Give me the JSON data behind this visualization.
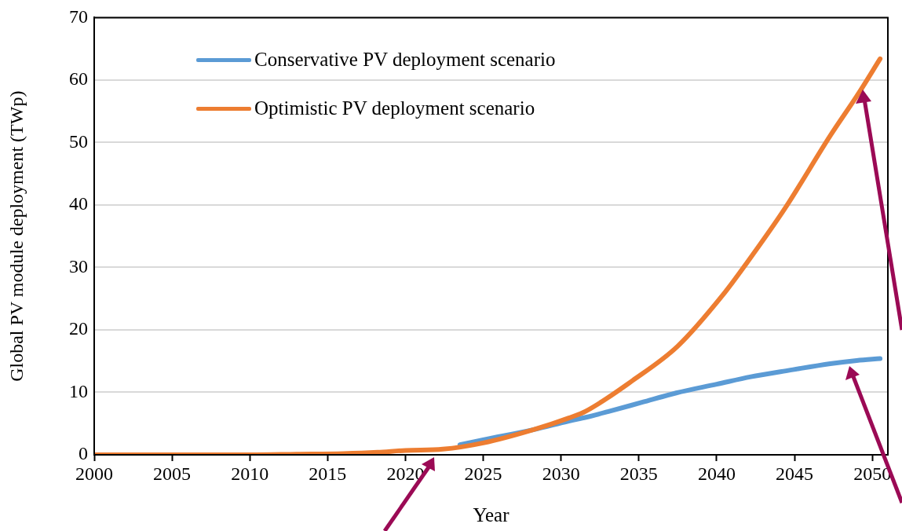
{
  "chart_data": {
    "type": "line",
    "xlabel": "Year",
    "ylabel": "Global PV module deployment (TWp)",
    "xlim": [
      2000,
      2051
    ],
    "xticks": [
      2000,
      2005,
      2010,
      2015,
      2020,
      2025,
      2030,
      2035,
      2040,
      2045,
      2050
    ],
    "ylim": [
      0,
      70
    ],
    "yticks": [
      0,
      10,
      20,
      30,
      40,
      50,
      60,
      70
    ],
    "grid": "y",
    "legend": "top left",
    "marker": "none",
    "line_style": "solid",
    "series": [
      {
        "name": "Conservative PV deployment scenario",
        "color": "#5b9bd5",
        "x": [
          2023.5,
          2025,
          2028.2,
          2030.5,
          2031.6,
          2033,
          2035.2,
          2037.4,
          2040,
          2042.2,
          2044.6,
          2047.3,
          2049,
          2050.5
        ],
        "values": [
          1.6,
          2.4,
          4.0,
          5.4,
          6.0,
          6.9,
          8.4,
          9.9,
          11.3,
          12.5,
          13.5,
          14.6,
          15.1,
          15.4
        ]
      },
      {
        "name": "Optimistic PV deployment scenario",
        "color": "#ed7d31",
        "x": [
          2000,
          2010,
          2013,
          2016,
          2018.2,
          2020,
          2022.4,
          2025,
          2028.2,
          2030.5,
          2031.6,
          2034.6,
          2037.5,
          2040.4,
          2041.9,
          2044.4,
          2047.3,
          2049.1,
          2050.5
        ],
        "values": [
          0,
          0,
          0.1,
          0.2,
          0.4,
          0.7,
          0.9,
          1.9,
          4.0,
          5.9,
          7.0,
          11.9,
          17.4,
          25.6,
          30.6,
          39.5,
          51.1,
          57.8,
          63.4
        ]
      }
    ]
  }
}
